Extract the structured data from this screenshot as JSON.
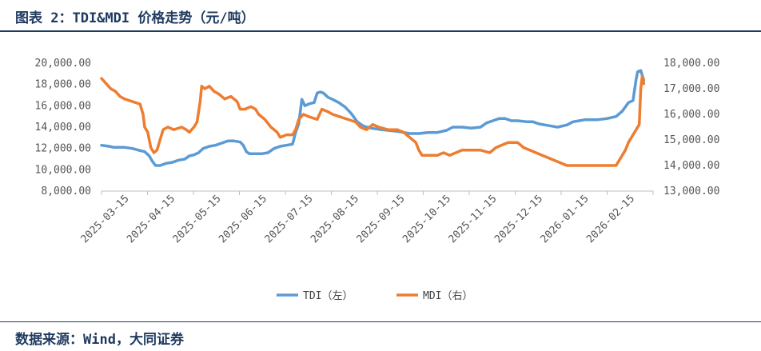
{
  "header": {
    "title": "图表 2：TDI&MDI 价格走势（元/吨）"
  },
  "footer": {
    "source": "数据来源：Wind，大同证券"
  },
  "chart_data": {
    "type": "line",
    "title": "TDI&MDI 价格走势（元/吨）",
    "x_labels": [
      "2025-03-15",
      "2025-04-15",
      "2025-05-15",
      "2025-06-15",
      "2025-07-15",
      "2025-08-15",
      "2025-09-15",
      "2025-10-15",
      "2025-11-15",
      "2025-12-15",
      "2026-01-15",
      "2026-02-15"
    ],
    "x_range_days": [
      0,
      358
    ],
    "left_axis": {
      "ylim": [
        8000,
        20000
      ],
      "ticks": [
        8000,
        10000,
        12000,
        14000,
        16000,
        18000,
        20000
      ],
      "tick_labels": [
        "8,000.00",
        "10,000.00",
        "12,000.00",
        "14,000.00",
        "16,000.00",
        "18,000.00",
        "20,000.00"
      ]
    },
    "right_axis": {
      "ylim": [
        13000,
        18000
      ],
      "ticks": [
        13000,
        14000,
        15000,
        16000,
        17000,
        18000
      ],
      "tick_labels": [
        "13,000.00",
        "14,000.00",
        "15,000.00",
        "16,000.00",
        "17,000.00",
        "18,000.00"
      ]
    },
    "series": [
      {
        "name": "TDI（左）",
        "axis": "left",
        "color": "#5b9bd5",
        "points": [
          [
            0,
            12300
          ],
          [
            5,
            12200
          ],
          [
            8,
            12100
          ],
          [
            15,
            12100
          ],
          [
            20,
            12000
          ],
          [
            25,
            11800
          ],
          [
            28,
            11700
          ],
          [
            31,
            11300
          ],
          [
            33,
            10800
          ],
          [
            35,
            10400
          ],
          [
            38,
            10400
          ],
          [
            42,
            10600
          ],
          [
            46,
            10700
          ],
          [
            50,
            10900
          ],
          [
            54,
            11000
          ],
          [
            57,
            11300
          ],
          [
            60,
            11400
          ],
          [
            63,
            11600
          ],
          [
            66,
            12000
          ],
          [
            70,
            12200
          ],
          [
            74,
            12300
          ],
          [
            78,
            12500
          ],
          [
            82,
            12700
          ],
          [
            86,
            12700
          ],
          [
            90,
            12600
          ],
          [
            92,
            12300
          ],
          [
            94,
            11700
          ],
          [
            96,
            11500
          ],
          [
            100,
            11500
          ],
          [
            104,
            11500
          ],
          [
            108,
            11600
          ],
          [
            112,
            12000
          ],
          [
            116,
            12200
          ],
          [
            120,
            12300
          ],
          [
            124,
            12400
          ],
          [
            126,
            13500
          ],
          [
            128,
            14300
          ],
          [
            130,
            16600
          ],
          [
            132,
            16000
          ],
          [
            135,
            16200
          ],
          [
            138,
            16300
          ],
          [
            140,
            17200
          ],
          [
            142,
            17300
          ],
          [
            144,
            17200
          ],
          [
            147,
            16800
          ],
          [
            150,
            16600
          ],
          [
            154,
            16300
          ],
          [
            158,
            15900
          ],
          [
            162,
            15300
          ],
          [
            166,
            14500
          ],
          [
            170,
            14100
          ],
          [
            175,
            13900
          ],
          [
            180,
            13800
          ],
          [
            186,
            13700
          ],
          [
            192,
            13600
          ],
          [
            200,
            13400
          ],
          [
            206,
            13400
          ],
          [
            212,
            13500
          ],
          [
            218,
            13500
          ],
          [
            224,
            13700
          ],
          [
            228,
            14000
          ],
          [
            234,
            14000
          ],
          [
            240,
            13900
          ],
          [
            246,
            14000
          ],
          [
            250,
            14400
          ],
          [
            254,
            14600
          ],
          [
            258,
            14800
          ],
          [
            262,
            14800
          ],
          [
            266,
            14600
          ],
          [
            270,
            14600
          ],
          [
            276,
            14500
          ],
          [
            280,
            14500
          ],
          [
            284,
            14300
          ],
          [
            288,
            14200
          ],
          [
            292,
            14100
          ],
          [
            296,
            14000
          ],
          [
            302,
            14200
          ],
          [
            306,
            14500
          ],
          [
            310,
            14600
          ],
          [
            314,
            14700
          ],
          [
            318,
            14700
          ],
          [
            322,
            14700
          ],
          [
            328,
            14800
          ],
          [
            334,
            15000
          ],
          [
            338,
            15500
          ],
          [
            342,
            16300
          ],
          [
            345,
            16500
          ],
          [
            347,
            18500
          ],
          [
            348,
            19200
          ],
          [
            350,
            19300
          ],
          [
            352,
            18400
          ]
        ]
      },
      {
        "name": "MDI（右）",
        "axis": "right",
        "color": "#ed7d31",
        "points": [
          [
            0,
            17400
          ],
          [
            3,
            17200
          ],
          [
            6,
            17000
          ],
          [
            9,
            16900
          ],
          [
            12,
            16700
          ],
          [
            15,
            16600
          ],
          [
            20,
            16500
          ],
          [
            25,
            16400
          ],
          [
            27,
            16000
          ],
          [
            28,
            15500
          ],
          [
            30,
            15300
          ],
          [
            32,
            14700
          ],
          [
            34,
            14500
          ],
          [
            36,
            14600
          ],
          [
            38,
            15000
          ],
          [
            40,
            15400
          ],
          [
            43,
            15500
          ],
          [
            47,
            15400
          ],
          [
            52,
            15500
          ],
          [
            55,
            15400
          ],
          [
            57,
            15300
          ],
          [
            60,
            15500
          ],
          [
            62,
            15700
          ],
          [
            64,
            16500
          ],
          [
            65,
            17100
          ],
          [
            67,
            17000
          ],
          [
            70,
            17100
          ],
          [
            73,
            16900
          ],
          [
            76,
            16800
          ],
          [
            80,
            16600
          ],
          [
            84,
            16700
          ],
          [
            88,
            16500
          ],
          [
            90,
            16200
          ],
          [
            93,
            16200
          ],
          [
            97,
            16300
          ],
          [
            100,
            16200
          ],
          [
            102,
            16000
          ],
          [
            106,
            15800
          ],
          [
            110,
            15500
          ],
          [
            114,
            15300
          ],
          [
            116,
            15100
          ],
          [
            120,
            15200
          ],
          [
            124,
            15200
          ],
          [
            126,
            15400
          ],
          [
            128,
            15800
          ],
          [
            131,
            16000
          ],
          [
            135,
            15900
          ],
          [
            140,
            15800
          ],
          [
            143,
            16200
          ],
          [
            147,
            16100
          ],
          [
            150,
            16000
          ],
          [
            155,
            15900
          ],
          [
            160,
            15800
          ],
          [
            165,
            15700
          ],
          [
            168,
            15500
          ],
          [
            172,
            15400
          ],
          [
            176,
            15600
          ],
          [
            180,
            15500
          ],
          [
            186,
            15400
          ],
          [
            192,
            15400
          ],
          [
            196,
            15300
          ],
          [
            200,
            15100
          ],
          [
            204,
            14900
          ],
          [
            206,
            14600
          ],
          [
            208,
            14400
          ],
          [
            212,
            14400
          ],
          [
            218,
            14400
          ],
          [
            222,
            14500
          ],
          [
            226,
            14400
          ],
          [
            230,
            14500
          ],
          [
            234,
            14600
          ],
          [
            240,
            14600
          ],
          [
            246,
            14600
          ],
          [
            252,
            14500
          ],
          [
            256,
            14700
          ],
          [
            260,
            14800
          ],
          [
            264,
            14900
          ],
          [
            270,
            14900
          ],
          [
            274,
            14700
          ],
          [
            278,
            14600
          ],
          [
            282,
            14500
          ],
          [
            286,
            14400
          ],
          [
            290,
            14300
          ],
          [
            294,
            14200
          ],
          [
            298,
            14100
          ],
          [
            302,
            14000
          ],
          [
            310,
            14000
          ],
          [
            320,
            14000
          ],
          [
            328,
            14000
          ],
          [
            334,
            14000
          ],
          [
            336,
            14200
          ],
          [
            338,
            14400
          ],
          [
            340,
            14600
          ],
          [
            342,
            14900
          ],
          [
            344,
            15100
          ],
          [
            346,
            15300
          ],
          [
            348,
            15500
          ],
          [
            349,
            15600
          ],
          [
            350,
            17000
          ],
          [
            351,
            17500
          ],
          [
            352,
            17200
          ]
        ]
      }
    ]
  }
}
